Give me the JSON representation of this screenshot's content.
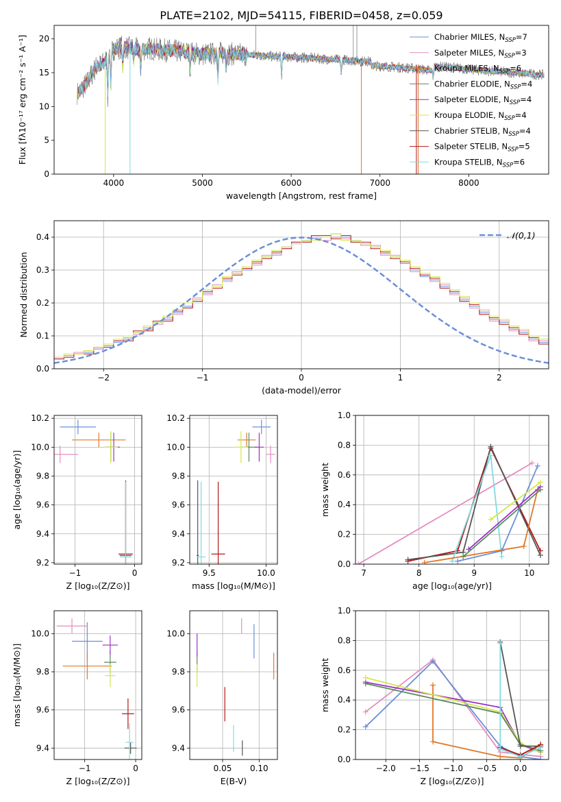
{
  "figure": {
    "title": "PLATE=2102, MJD=54115, FIBERID=0458, z=0.059"
  },
  "colors": {
    "chabrier_miles": "#6a8fd8",
    "salpeter_miles": "#e48cbf",
    "kroupa_miles": "#e07828",
    "chabrier_elodie": "#5a8a5a",
    "salpeter_elodie": "#9b2fc4",
    "kroupa_elodie": "#d4e64a",
    "chabrier_stelib": "#555555",
    "salpeter_stelib": "#b01818",
    "kroupa_stelib": "#7fdbe0",
    "grid": "#b0b0b0"
  },
  "legend_spectrum": [
    {
      "label": "Chabrier MILES, N",
      "sub": "SSP",
      "suffix": "=7",
      "color": "#6a8fd8"
    },
    {
      "label": "Salpeter MILES, N",
      "sub": "SSP",
      "suffix": "=3",
      "color": "#e48cbf"
    },
    {
      "label": "Kroupa MILES, N",
      "sub": "SSP",
      "suffix": "=6",
      "color": "#e07828"
    },
    {
      "label": "Chabrier ELODIE, N",
      "sub": "SSP",
      "suffix": "=4",
      "color": "#5a8a5a"
    },
    {
      "label": "Salpeter ELODIE, N",
      "sub": "SSP",
      "suffix": "=4",
      "color": "#9b2fc4"
    },
    {
      "label": "Kroupa ELODIE, N",
      "sub": "SSP",
      "suffix": "=4",
      "color": "#d4e64a"
    },
    {
      "label": "Chabrier STELIB, N",
      "sub": "SSP",
      "suffix": "=4",
      "color": "#555555"
    },
    {
      "label": "Salpeter STELIB, N",
      "sub": "SSP",
      "suffix": "=5",
      "color": "#b01818"
    },
    {
      "label": "Kroupa STELIB, N",
      "sub": "SSP",
      "suffix": "=6",
      "color": "#7fdbe0"
    }
  ],
  "chart_data": [
    {
      "id": "spectrum",
      "type": "line",
      "xlabel": "wavelength [Angstrom, rest frame]",
      "ylabel": "Flux [fλ10⁻¹⁷ erg cm⁻² s⁻¹ A⁻¹]",
      "xlim": [
        3330,
        8900
      ],
      "ylim": [
        0,
        22
      ],
      "xticks": [
        4000,
        5000,
        6000,
        7000,
        8000
      ],
      "yticks": [
        0,
        5,
        10,
        15,
        20
      ],
      "grid": false,
      "legend": "top-right",
      "x": [
        3600,
        3700,
        3800,
        3900,
        4000,
        4100,
        4200,
        4300,
        4400,
        4500,
        4600,
        4700,
        4800,
        4900,
        5000,
        5200,
        5400,
        5600,
        5800,
        6000,
        6200,
        6400,
        6600,
        6800,
        7000,
        7200,
        7400,
        7600,
        7800,
        8000,
        8200,
        8400,
        8600,
        8800
      ],
      "y": [
        12.0,
        13.5,
        15.8,
        16.5,
        18.5,
        18.8,
        18.6,
        18.4,
        18.6,
        18.4,
        18.3,
        18.2,
        18.0,
        17.9,
        17.7,
        17.9,
        17.7,
        17.6,
        17.4,
        17.3,
        17.2,
        17.0,
        16.9,
        16.7,
        16.6,
        16.4,
        16.2,
        15.9,
        15.8,
        15.5,
        15.3,
        15.1,
        14.9,
        14.7
      ]
    },
    {
      "id": "residuals",
      "type": "line",
      "xlabel": "(data-model)/error",
      "ylabel": "Normed distribution",
      "xlim": [
        -2.5,
        2.5
      ],
      "ylim": [
        0,
        0.45
      ],
      "xticks": [
        -2,
        -1,
        0,
        1,
        2
      ],
      "yticks": [
        0.0,
        0.1,
        0.2,
        0.3,
        0.4
      ],
      "grid": true,
      "legend": "top-right",
      "legend_label": "𝒩(0,1)",
      "bin_width": 0.1,
      "series": [
        {
          "color": "#6a8fd8",
          "values": [
            0.03,
            0.04,
            0.045,
            0.05,
            0.06,
            0.07,
            0.08,
            0.09,
            0.11,
            0.12,
            0.14,
            0.15,
            0.17,
            0.19,
            0.21,
            0.23,
            0.25,
            0.27,
            0.29,
            0.3,
            0.32,
            0.34,
            0.35,
            0.37,
            0.38,
            0.39,
            0.395,
            0.4,
            0.4,
            0.4,
            0.39,
            0.38,
            0.37,
            0.35,
            0.34,
            0.32,
            0.3,
            0.28,
            0.27,
            0.25,
            0.23,
            0.21,
            0.19,
            0.17,
            0.15,
            0.14,
            0.12,
            0.11,
            0.09,
            0.08
          ]
        },
        {
          "color": "#e48cbf",
          "values": [
            0.035,
            0.04,
            0.05,
            0.055,
            0.06,
            0.075,
            0.085,
            0.095,
            0.105,
            0.125,
            0.135,
            0.155,
            0.165,
            0.185,
            0.215,
            0.225,
            0.255,
            0.265,
            0.295,
            0.305,
            0.315,
            0.345,
            0.345,
            0.365,
            0.385,
            0.385,
            0.4,
            0.39,
            0.41,
            0.395,
            0.385,
            0.375,
            0.375,
            0.345,
            0.345,
            0.325,
            0.295,
            0.285,
            0.265,
            0.255,
            0.225,
            0.215,
            0.185,
            0.175,
            0.145,
            0.145,
            0.115,
            0.115,
            0.085,
            0.085
          ]
        },
        {
          "color": "#b01818",
          "values": [
            0.03,
            0.035,
            0.045,
            0.045,
            0.065,
            0.065,
            0.085,
            0.085,
            0.115,
            0.115,
            0.145,
            0.145,
            0.175,
            0.185,
            0.205,
            0.235,
            0.245,
            0.275,
            0.285,
            0.305,
            0.325,
            0.335,
            0.355,
            0.365,
            0.385,
            0.385,
            0.405,
            0.405,
            0.395,
            0.405,
            0.385,
            0.385,
            0.365,
            0.355,
            0.335,
            0.325,
            0.305,
            0.285,
            0.275,
            0.245,
            0.235,
            0.205,
            0.195,
            0.165,
            0.155,
            0.135,
            0.125,
            0.105,
            0.095,
            0.075
          ]
        },
        {
          "color": "#d4e64a",
          "values": [
            0.035,
            0.045,
            0.045,
            0.055,
            0.065,
            0.075,
            0.09,
            0.1,
            0.11,
            0.13,
            0.14,
            0.16,
            0.18,
            0.2,
            0.21,
            0.24,
            0.25,
            0.28,
            0.29,
            0.31,
            0.33,
            0.34,
            0.36,
            0.37,
            0.38,
            0.39,
            0.39,
            0.4,
            0.41,
            0.39,
            0.39,
            0.38,
            0.37,
            0.36,
            0.34,
            0.33,
            0.31,
            0.29,
            0.28,
            0.26,
            0.24,
            0.22,
            0.2,
            0.18,
            0.16,
            0.15,
            0.13,
            0.12,
            0.1,
            0.09
          ]
        }
      ],
      "normal_curve": {
        "mean": 0,
        "sigma": 1,
        "color": "#6a8fd8"
      }
    },
    {
      "id": "age-vs-Z",
      "type": "scatter",
      "xlabel": "Z [log₁₀(Z/Z⊙)]",
      "ylabel": "age  [log₁₀(age/yr)]",
      "xlim": [
        -1.35,
        0.12
      ],
      "ylim": [
        9.19,
        10.22
      ],
      "xticks": [
        -1,
        0
      ],
      "yticks": [
        9.2,
        9.4,
        9.6,
        9.8,
        10.0,
        10.2
      ],
      "grid": true,
      "points": [
        {
          "color": "#6a8fd8",
          "x": -0.95,
          "y": 10.14,
          "xerr": 0.3,
          "yerr": 0.05
        },
        {
          "color": "#e48cbf",
          "x": -1.25,
          "y": 9.95,
          "xerr": 0.3,
          "yerr": 0.06
        },
        {
          "color": "#e07828",
          "x": -0.6,
          "y": 10.05,
          "xerr": 0.45,
          "yerr": 0.05
        },
        {
          "color": "#5a8a5a",
          "x": -0.4,
          "y": 10.0,
          "xerr": 0.1,
          "yerr": 0.1
        },
        {
          "color": "#9b2fc4",
          "x": -0.35,
          "y": 10.0,
          "xerr": 0.1,
          "yerr": 0.1
        },
        {
          "color": "#d4e64a",
          "x": -0.4,
          "y": 10.0,
          "xerr": 0.12,
          "yerr": 0.11
        },
        {
          "color": "#555555",
          "x": -0.15,
          "y": 9.25,
          "xerr": 0.1,
          "yerr": 0.52
        },
        {
          "color": "#b01818",
          "x": -0.15,
          "y": 9.26,
          "xerr": 0.12,
          "yerr": 0.5
        },
        {
          "color": "#7fdbe0",
          "x": -0.15,
          "y": 9.24,
          "xerr": 0.1,
          "yerr": 0.52
        }
      ]
    },
    {
      "id": "age-vs-mass",
      "type": "scatter",
      "xlabel": "mass [log₁₀(M/M⊙)]",
      "ylabel": "",
      "xlim": [
        9.33,
        10.1
      ],
      "ylim": [
        9.19,
        10.22
      ],
      "xticks": [
        9.5,
        10.0
      ],
      "yticks": [
        9.2,
        9.4,
        9.6,
        9.8,
        10.0,
        10.2
      ],
      "grid": true,
      "points": [
        {
          "color": "#6a8fd8",
          "x": 9.96,
          "y": 10.14,
          "xerr": 0.08,
          "yerr": 0.05
        },
        {
          "color": "#e48cbf",
          "x": 10.04,
          "y": 9.95,
          "xerr": 0.04,
          "yerr": 0.06
        },
        {
          "color": "#e07828",
          "x": 9.83,
          "y": 10.05,
          "xerr": 0.08,
          "yerr": 0.05
        },
        {
          "color": "#5a8a5a",
          "x": 9.85,
          "y": 10.0,
          "xerr": 0.07,
          "yerr": 0.1
        },
        {
          "color": "#9b2fc4",
          "x": 9.94,
          "y": 10.0,
          "xerr": 0.04,
          "yerr": 0.1
        },
        {
          "color": "#d4e64a",
          "x": 9.78,
          "y": 10.0,
          "xerr": 0.06,
          "yerr": 0.11
        },
        {
          "color": "#555555",
          "x": 9.4,
          "y": 9.25,
          "xerr": 0.01,
          "yerr": 0.52
        },
        {
          "color": "#b01818",
          "x": 9.58,
          "y": 9.26,
          "xerr": 0.06,
          "yerr": 0.5
        },
        {
          "color": "#7fdbe0",
          "x": 9.43,
          "y": 9.24,
          "xerr": 0.04,
          "yerr": 0.52
        }
      ]
    },
    {
      "id": "weight-vs-age",
      "type": "line",
      "xlabel": "age  [log₁₀(age/yr)]",
      "ylabel": "mass weight",
      "xlim": [
        6.85,
        10.35
      ],
      "ylim": [
        0,
        1.0
      ],
      "xticks": [
        7,
        8,
        9,
        10
      ],
      "yticks": [
        0.0,
        0.2,
        0.4,
        0.6,
        0.8,
        1.0
      ],
      "grid": true,
      "series": [
        {
          "color": "#e48cbf",
          "x": [
            6.9,
            10.05
          ],
          "y": [
            0.0,
            0.68
          ]
        },
        {
          "color": "#b01818",
          "x": [
            7.8,
            8.7,
            9.3,
            10.2
          ],
          "y": [
            0.02,
            0.09,
            0.78,
            0.09
          ]
        },
        {
          "color": "#555555",
          "x": [
            7.8,
            8.8,
            9.3,
            10.2
          ],
          "y": [
            0.03,
            0.08,
            0.79,
            0.06
          ]
        },
        {
          "color": "#7fdbe0",
          "x": [
            8.6,
            9.3,
            9.5
          ],
          "y": [
            0.02,
            0.73,
            0.05
          ]
        },
        {
          "color": "#6a8fd8",
          "x": [
            8.7,
            9.5,
            10.15
          ],
          "y": [
            0.02,
            0.09,
            0.66
          ]
        },
        {
          "color": "#e07828",
          "x": [
            8.1,
            9.9,
            10.15
          ],
          "y": [
            0.01,
            0.12,
            0.5
          ]
        },
        {
          "color": "#9b2fc4",
          "x": [
            8.9,
            10.2
          ],
          "y": [
            0.1,
            0.52
          ]
        },
        {
          "color": "#d4e64a",
          "x": [
            9.3,
            10.2
          ],
          "y": [
            0.3,
            0.55
          ]
        },
        {
          "color": "#5a8a5a",
          "x": [
            8.8,
            10.2
          ],
          "y": [
            0.05,
            0.5
          ]
        }
      ]
    },
    {
      "id": "mass-vs-Z",
      "type": "scatter",
      "xlabel": "Z [log₁₀(Z/Z⊙)]",
      "ylabel": "mass [log₁₀(M/M⊙)]",
      "xlim": [
        -1.6,
        0.12
      ],
      "ylim": [
        9.34,
        10.12
      ],
      "xticks": [
        -1,
        0
      ],
      "yticks": [
        9.4,
        9.6,
        9.8,
        10.0
      ],
      "grid": true,
      "points": [
        {
          "color": "#6a8fd8",
          "x": -0.95,
          "y": 9.96,
          "xerr": 0.3,
          "yerr": 0.1
        },
        {
          "color": "#e48cbf",
          "x": -1.25,
          "y": 10.04,
          "xerr": 0.3,
          "yerr": 0.04
        },
        {
          "color": "#e07828",
          "x": -0.95,
          "y": 9.83,
          "xerr": 0.48,
          "yerr": 0.07
        },
        {
          "color": "#5a8a5a",
          "x": -0.5,
          "y": 9.85,
          "xerr": 0.12,
          "yerr": 0.06
        },
        {
          "color": "#9b2fc4",
          "x": -0.5,
          "y": 9.94,
          "xerr": 0.15,
          "yerr": 0.05
        },
        {
          "color": "#d4e64a",
          "x": -0.5,
          "y": 9.78,
          "xerr": 0.1,
          "yerr": 0.06
        },
        {
          "color": "#555555",
          "x": -0.1,
          "y": 9.4,
          "xerr": 0.12,
          "yerr": 0.03
        },
        {
          "color": "#b01818",
          "x": -0.15,
          "y": 9.58,
          "xerr": 0.12,
          "yerr": 0.08
        },
        {
          "color": "#7fdbe0",
          "x": -0.12,
          "y": 9.43,
          "xerr": 0.08,
          "yerr": 0.1
        }
      ]
    },
    {
      "id": "mass-vs-ebv",
      "type": "scatter",
      "xlabel": "E(B-V)",
      "ylabel": "",
      "xlim": [
        0.005,
        0.125
      ],
      "ylim": [
        9.34,
        10.12
      ],
      "xticks": [
        0.05,
        0.1
      ],
      "yticks": [
        9.4,
        9.6,
        9.8,
        10.0
      ],
      "grid": true,
      "points": [
        {
          "color": "#6a8fd8",
          "x": 0.093,
          "y": 9.96,
          "xerr": 0.0,
          "yerr": 0.09
        },
        {
          "color": "#e48cbf",
          "x": 0.076,
          "y": 10.04,
          "xerr": 0.0,
          "yerr": 0.04
        },
        {
          "color": "#e07828",
          "x": 0.12,
          "y": 9.83,
          "xerr": 0.0,
          "yerr": 0.07
        },
        {
          "color": "#5a8a5a",
          "x": 0.015,
          "y": 9.85,
          "xerr": 0.0,
          "yerr": 0.05
        },
        {
          "color": "#9b2fc4",
          "x": 0.015,
          "y": 9.94,
          "xerr": 0.0,
          "yerr": 0.06
        },
        {
          "color": "#d4e64a",
          "x": 0.015,
          "y": 9.78,
          "xerr": 0.0,
          "yerr": 0.06
        },
        {
          "color": "#555555",
          "x": 0.077,
          "y": 9.4,
          "xerr": 0.0,
          "yerr": 0.04
        },
        {
          "color": "#b01818",
          "x": 0.053,
          "y": 9.63,
          "xerr": 0.0,
          "yerr": 0.09
        },
        {
          "color": "#7fdbe0",
          "x": 0.065,
          "y": 9.45,
          "xerr": 0.0,
          "yerr": 0.07
        }
      ]
    },
    {
      "id": "weight-vs-Z",
      "type": "line",
      "xlabel": "Z [log₁₀(Z/Z⊙)]",
      "ylabel": "mass weight",
      "xlim": [
        -2.45,
        0.42
      ],
      "ylim": [
        0,
        1.0
      ],
      "xticks": [
        -2.0,
        -1.5,
        -1.0,
        -0.5,
        0.0
      ],
      "yticks": [
        0.0,
        0.2,
        0.4,
        0.6,
        0.8,
        1.0
      ],
      "grid": true,
      "series": [
        {
          "color": "#e48cbf",
          "x": [
            -2.3,
            -1.3,
            -0.3,
            0.3
          ],
          "y": [
            0.32,
            0.67,
            0.05,
            0.02
          ]
        },
        {
          "color": "#6a8fd8",
          "x": [
            -2.3,
            -1.3,
            -0.3,
            0.0,
            0.3
          ],
          "y": [
            0.22,
            0.66,
            0.09,
            0.02,
            0.0
          ]
        },
        {
          "color": "#e07828",
          "x": [
            -1.3,
            -1.3,
            -0.3,
            0.0,
            0.3
          ],
          "y": [
            0.5,
            0.12,
            0.02,
            0.01,
            0.1
          ]
        },
        {
          "color": "#9b2fc4",
          "x": [
            -2.3,
            -0.3,
            0.0,
            0.3
          ],
          "y": [
            0.52,
            0.35,
            0.1,
            0.05
          ]
        },
        {
          "color": "#d4e64a",
          "x": [
            -2.3,
            -0.3,
            0.0,
            0.3
          ],
          "y": [
            0.55,
            0.32,
            0.11,
            0.05
          ]
        },
        {
          "color": "#5a8a5a",
          "x": [
            -2.3,
            -0.3,
            0.0,
            0.3
          ],
          "y": [
            0.51,
            0.31,
            0.1,
            0.06
          ]
        },
        {
          "color": "#555555",
          "x": [
            -0.3,
            0.0,
            0.3
          ],
          "y": [
            0.79,
            0.09,
            0.09
          ]
        },
        {
          "color": "#b01818",
          "x": [
            -0.3,
            0.0,
            0.3
          ],
          "y": [
            0.08,
            0.03,
            0.1
          ]
        },
        {
          "color": "#7fdbe0",
          "x": [
            -0.3,
            -0.3,
            0.0,
            0.3
          ],
          "y": [
            0.78,
            0.07,
            0.02,
            0.08
          ]
        }
      ]
    }
  ]
}
